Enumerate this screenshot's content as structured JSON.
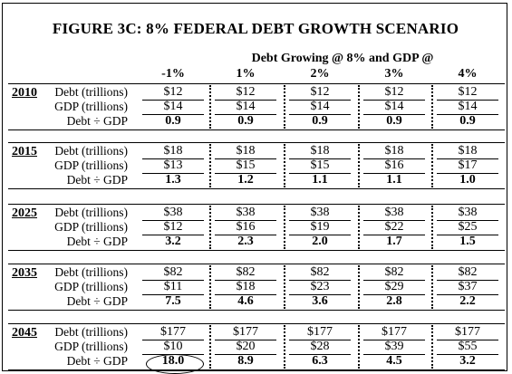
{
  "title": "FIGURE 3C: 8% FEDERAL DEBT GROWTH SCENARIO",
  "subheader": "Debt Growing @ 8% and GDP @",
  "columns": [
    "-1%",
    "1%",
    "2%",
    "3%",
    "4%"
  ],
  "row_labels": [
    "Debt (trillions)",
    "GDP (trillions)",
    "Debt ÷ GDP"
  ],
  "sections": [
    {
      "year": "2010",
      "debt": [
        "$12",
        "$12",
        "$12",
        "$12",
        "$12"
      ],
      "gdp": [
        "$14",
        "$14",
        "$14",
        "$14",
        "$14"
      ],
      "ratio": [
        "0.9",
        "0.9",
        "0.9",
        "0.9",
        "0.9"
      ]
    },
    {
      "year": "2015",
      "debt": [
        "$18",
        "$18",
        "$18",
        "$18",
        "$18"
      ],
      "gdp": [
        "$13",
        "$15",
        "$15",
        "$16",
        "$17"
      ],
      "ratio": [
        "1.3",
        "1.2",
        "1.1",
        "1.1",
        "1.0"
      ]
    },
    {
      "year": "2025",
      "debt": [
        "$38",
        "$38",
        "$38",
        "$38",
        "$38"
      ],
      "gdp": [
        "$12",
        "$16",
        "$19",
        "$22",
        "$25"
      ],
      "ratio": [
        "3.2",
        "2.3",
        "2.0",
        "1.7",
        "1.5"
      ]
    },
    {
      "year": "2035",
      "debt": [
        "$82",
        "$82",
        "$82",
        "$82",
        "$82"
      ],
      "gdp": [
        "$11",
        "$18",
        "$23",
        "$29",
        "$37"
      ],
      "ratio": [
        "7.5",
        "4.6",
        "3.6",
        "2.8",
        "2.2"
      ]
    },
    {
      "year": "2045",
      "debt": [
        "$177",
        "$177",
        "$177",
        "$177",
        "$177"
      ],
      "gdp": [
        "$10",
        "$20",
        "$28",
        "$39",
        "$55"
      ],
      "ratio": [
        "18.0",
        "8.9",
        "6.3",
        "4.5",
        "3.2"
      ]
    }
  ],
  "highlighted_cell": "18.0"
}
